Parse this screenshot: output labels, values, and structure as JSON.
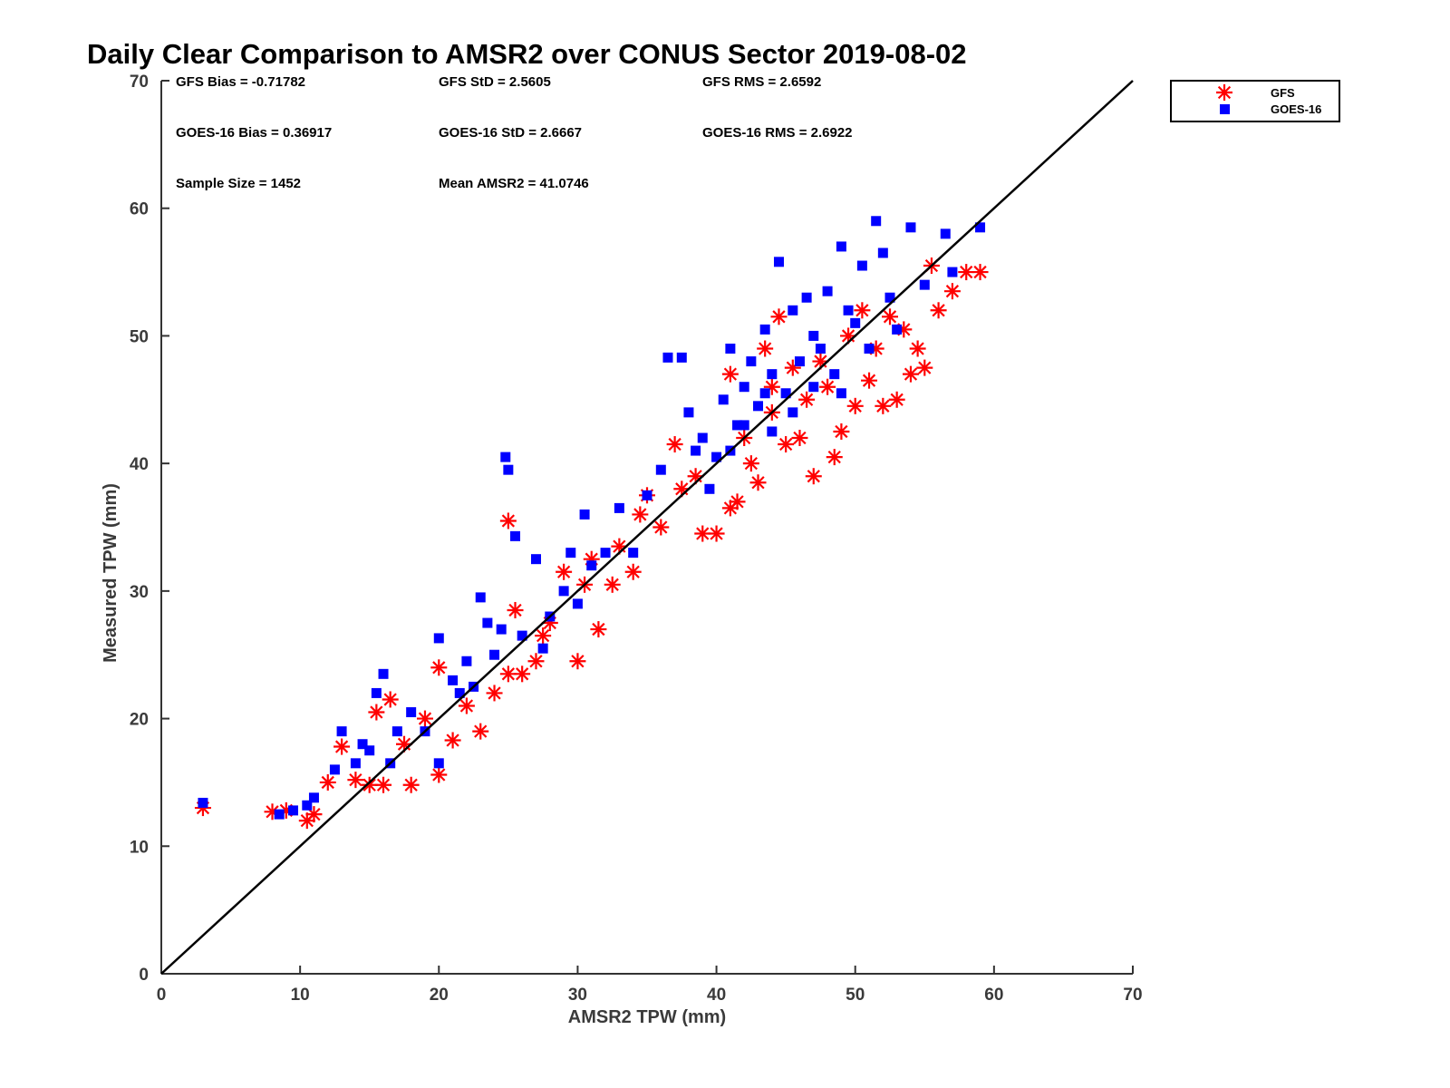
{
  "chart_data": {
    "type": "scatter",
    "title": "Daily Clear Comparison to AMSR2 over CONUS Sector 2019-08-02",
    "xlabel": "AMSR2 TPW (mm)",
    "ylabel": "Measured TPW (mm)",
    "xlim": [
      0,
      70
    ],
    "ylim": [
      0,
      70
    ],
    "xticks": [
      0,
      10,
      20,
      30,
      40,
      50,
      60,
      70
    ],
    "yticks": [
      0,
      10,
      20,
      30,
      40,
      50,
      60,
      70
    ],
    "reference_line": "1:1",
    "legend": {
      "position": "outside-top-right",
      "entries": [
        "GFS",
        "GOES-16"
      ]
    },
    "stats": {
      "gfs_bias": "GFS Bias = -0.71782",
      "gfs_std": "GFS StD = 2.5605",
      "gfs_rms": "GFS RMS = 2.6592",
      "goes_bias": "GOES-16 Bias = 0.36917",
      "goes_std": "GOES-16 StD = 2.6667",
      "goes_rms": "GOES-16 RMS = 2.6922",
      "sample_size": "Sample Size = 1452",
      "mean_amsr2": "Mean AMSR2 = 41.0746"
    },
    "series": [
      {
        "name": "GFS",
        "color": "#ff0000",
        "marker": "asterisk",
        "points": [
          [
            3.0,
            13.0
          ],
          [
            8.0,
            12.7
          ],
          [
            9.0,
            12.8
          ],
          [
            10.5,
            12.0
          ],
          [
            11.0,
            12.5
          ],
          [
            12.0,
            15.0
          ],
          [
            13.0,
            17.8
          ],
          [
            14.0,
            15.2
          ],
          [
            15.0,
            14.8
          ],
          [
            15.5,
            20.5
          ],
          [
            16.0,
            14.8
          ],
          [
            16.5,
            21.5
          ],
          [
            17.5,
            18.0
          ],
          [
            18.0,
            14.8
          ],
          [
            19.0,
            20.0
          ],
          [
            20.0,
            15.6
          ],
          [
            21.0,
            18.3
          ],
          [
            20.0,
            24.0
          ],
          [
            22.0,
            21.0
          ],
          [
            23.0,
            19.0
          ],
          [
            24.0,
            22.0
          ],
          [
            25.0,
            23.5
          ],
          [
            25.0,
            35.5
          ],
          [
            25.5,
            28.5
          ],
          [
            26.0,
            23.5
          ],
          [
            27.0,
            24.5
          ],
          [
            27.5,
            26.5
          ],
          [
            28.0,
            27.5
          ],
          [
            29.0,
            31.5
          ],
          [
            30.0,
            24.5
          ],
          [
            30.5,
            30.5
          ],
          [
            31.0,
            32.5
          ],
          [
            31.5,
            27.0
          ],
          [
            32.5,
            30.5
          ],
          [
            33.0,
            33.5
          ],
          [
            34.0,
            31.5
          ],
          [
            34.5,
            36.0
          ],
          [
            35.0,
            37.5
          ],
          [
            36.0,
            35.0
          ],
          [
            37.0,
            41.5
          ],
          [
            37.5,
            38.0
          ],
          [
            38.5,
            39.0
          ],
          [
            39.0,
            34.5
          ],
          [
            40.0,
            34.5
          ],
          [
            41.0,
            36.5
          ],
          [
            41.5,
            37.0
          ],
          [
            42.0,
            42.0
          ],
          [
            42.5,
            40.0
          ],
          [
            43.0,
            38.5
          ],
          [
            44.0,
            44.0
          ],
          [
            44.5,
            51.5
          ],
          [
            45.0,
            41.5
          ],
          [
            45.5,
            47.5
          ],
          [
            46.0,
            42.0
          ],
          [
            47.0,
            39.0
          ],
          [
            47.5,
            48.0
          ],
          [
            48.0,
            46.0
          ],
          [
            48.5,
            40.5
          ],
          [
            49.0,
            42.5
          ],
          [
            49.5,
            50.0
          ],
          [
            50.0,
            44.5
          ],
          [
            51.0,
            46.5
          ],
          [
            51.5,
            49.0
          ],
          [
            52.0,
            44.5
          ],
          [
            52.5,
            51.5
          ],
          [
            53.0,
            45.0
          ],
          [
            53.5,
            50.5
          ],
          [
            54.0,
            47.0
          ],
          [
            54.5,
            49.0
          ],
          [
            55.0,
            47.5
          ],
          [
            55.5,
            55.5
          ],
          [
            56.0,
            52.0
          ],
          [
            57.0,
            53.5
          ],
          [
            58.0,
            55.0
          ],
          [
            59.0,
            55.0
          ],
          [
            43.5,
            49.0
          ],
          [
            41.0,
            47.0
          ],
          [
            46.5,
            45.0
          ],
          [
            44.0,
            46.0
          ],
          [
            50.5,
            52.0
          ]
        ]
      },
      {
        "name": "GOES-16",
        "color": "#0000ff",
        "marker": "square",
        "points": [
          [
            3.0,
            13.4
          ],
          [
            8.5,
            12.5
          ],
          [
            9.5,
            12.8
          ],
          [
            10.5,
            13.2
          ],
          [
            11.0,
            13.8
          ],
          [
            12.5,
            16.0
          ],
          [
            13.0,
            19.0
          ],
          [
            14.0,
            16.5
          ],
          [
            14.5,
            18.0
          ],
          [
            15.0,
            17.5
          ],
          [
            15.5,
            22.0
          ],
          [
            16.0,
            23.5
          ],
          [
            16.5,
            16.5
          ],
          [
            17.0,
            19.0
          ],
          [
            18.0,
            20.5
          ],
          [
            19.0,
            19.0
          ],
          [
            20.0,
            26.3
          ],
          [
            20.0,
            16.5
          ],
          [
            21.0,
            23.0
          ],
          [
            21.5,
            22.0
          ],
          [
            22.0,
            24.5
          ],
          [
            22.5,
            22.5
          ],
          [
            23.0,
            29.5
          ],
          [
            23.5,
            27.5
          ],
          [
            24.0,
            25.0
          ],
          [
            24.5,
            27.0
          ],
          [
            24.8,
            40.5
          ],
          [
            25.0,
            39.5
          ],
          [
            25.5,
            34.3
          ],
          [
            26.0,
            26.5
          ],
          [
            27.0,
            32.5
          ],
          [
            27.5,
            25.5
          ],
          [
            28.0,
            28.0
          ],
          [
            29.0,
            30.0
          ],
          [
            29.5,
            33.0
          ],
          [
            30.0,
            29.0
          ],
          [
            30.5,
            36.0
          ],
          [
            31.0,
            32.0
          ],
          [
            32.0,
            33.0
          ],
          [
            33.0,
            36.5
          ],
          [
            34.0,
            33.0
          ],
          [
            35.0,
            37.5
          ],
          [
            36.0,
            39.5
          ],
          [
            36.5,
            48.3
          ],
          [
            37.5,
            48.3
          ],
          [
            38.0,
            44.0
          ],
          [
            38.5,
            41.0
          ],
          [
            39.0,
            42.0
          ],
          [
            39.5,
            38.0
          ],
          [
            40.0,
            40.5
          ],
          [
            40.5,
            45.0
          ],
          [
            41.0,
            49.0
          ],
          [
            41.5,
            43.0
          ],
          [
            42.0,
            46.0
          ],
          [
            42.5,
            48.0
          ],
          [
            43.0,
            44.5
          ],
          [
            43.5,
            50.5
          ],
          [
            44.0,
            47.0
          ],
          [
            44.5,
            55.8
          ],
          [
            45.0,
            45.5
          ],
          [
            45.5,
            52.0
          ],
          [
            46.0,
            48.0
          ],
          [
            46.5,
            53.0
          ],
          [
            47.0,
            50.0
          ],
          [
            47.5,
            49.0
          ],
          [
            48.0,
            53.5
          ],
          [
            48.5,
            47.0
          ],
          [
            49.0,
            57.0
          ],
          [
            49.5,
            52.0
          ],
          [
            50.0,
            51.0
          ],
          [
            50.5,
            55.5
          ],
          [
            51.0,
            49.0
          ],
          [
            51.5,
            59.0
          ],
          [
            52.0,
            56.5
          ],
          [
            52.5,
            53.0
          ],
          [
            53.0,
            50.5
          ],
          [
            54.0,
            58.5
          ],
          [
            55.0,
            54.0
          ],
          [
            56.5,
            58.0
          ],
          [
            57.0,
            55.0
          ],
          [
            59.0,
            58.5
          ],
          [
            42.0,
            43.0
          ],
          [
            44.0,
            42.5
          ],
          [
            45.5,
            44.0
          ],
          [
            47.0,
            46.0
          ],
          [
            49.0,
            45.5
          ],
          [
            41.0,
            41.0
          ],
          [
            43.5,
            45.5
          ]
        ]
      }
    ]
  }
}
